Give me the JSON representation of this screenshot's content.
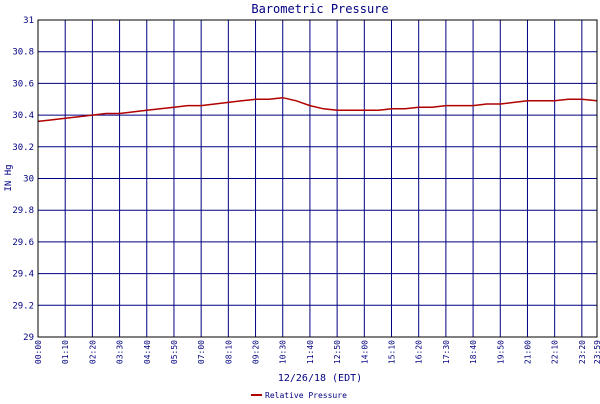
{
  "colors": {
    "background": "#ffffff",
    "plot_border": "#000000",
    "grid": "#000080",
    "text": "#000080",
    "series": "#b00000"
  },
  "chart_data": {
    "type": "line",
    "title": "Barometric Pressure",
    "xlabel": "12/26/18 (EDT)",
    "ylabel": "IN Hg",
    "ylim": [
      29,
      31
    ],
    "y_ticks": [
      "29",
      "29.2",
      "29.4",
      "29.6",
      "29.8",
      "30",
      "30.2",
      "30.4",
      "30.6",
      "30.8",
      "31"
    ],
    "x_ticks": [
      "00:00",
      "01:10",
      "02:20",
      "03:30",
      "04:40",
      "05:50",
      "07:00",
      "08:10",
      "09:20",
      "10:30",
      "11:40",
      "12:50",
      "14:00",
      "15:10",
      "16:20",
      "17:30",
      "18:40",
      "19:50",
      "21:00",
      "22:10",
      "23:20",
      "23:59"
    ],
    "x_tick_minutes": [
      0,
      70,
      140,
      210,
      280,
      350,
      420,
      490,
      560,
      630,
      700,
      770,
      840,
      910,
      980,
      1050,
      1120,
      1190,
      1260,
      1330,
      1400,
      1439
    ],
    "xlim_minutes": [
      0,
      1439
    ],
    "grid": true,
    "legend_position": "bottom-center",
    "series": [
      {
        "name": "Relative Pressure",
        "x_minutes": [
          0,
          35,
          70,
          105,
          140,
          175,
          210,
          245,
          280,
          315,
          350,
          385,
          420,
          455,
          490,
          525,
          560,
          595,
          630,
          665,
          700,
          735,
          770,
          805,
          840,
          875,
          910,
          945,
          980,
          1015,
          1050,
          1085,
          1120,
          1155,
          1190,
          1225,
          1260,
          1295,
          1330,
          1365,
          1400,
          1439
        ],
        "values": [
          30.36,
          30.37,
          30.38,
          30.39,
          30.4,
          30.41,
          30.41,
          30.42,
          30.43,
          30.44,
          30.45,
          30.46,
          30.46,
          30.47,
          30.48,
          30.49,
          30.5,
          30.5,
          30.51,
          30.49,
          30.46,
          30.44,
          30.43,
          30.43,
          30.43,
          30.43,
          30.44,
          30.44,
          30.45,
          30.45,
          30.46,
          30.46,
          30.46,
          30.47,
          30.47,
          30.48,
          30.49,
          30.49,
          30.49,
          30.5,
          30.5,
          30.49
        ]
      }
    ]
  }
}
